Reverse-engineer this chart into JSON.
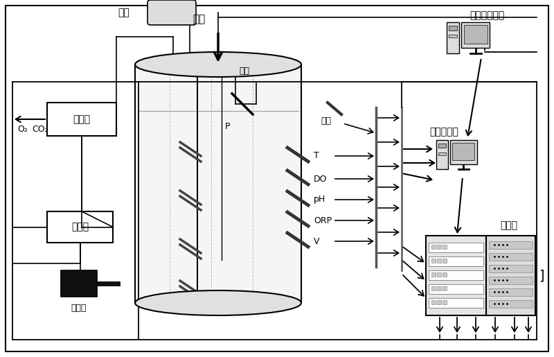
{
  "bg_color": "#ffffff",
  "line_color": "#000000",
  "labels": {
    "buLiao": "补料",
    "guangYuan": "光源",
    "shenDu": "深度",
    "liuLiang": "流量",
    "zhiPuYi": "质谱仪",
    "O2": "O₂",
    "CO2": "CO₂",
    "jiSuanJi1": "计算机",
    "xianWeiYi": "显微仪",
    "T": "T",
    "DO": "DO",
    "pH": "pH",
    "ORP": "ORP",
    "V": "V",
    "P": "P",
    "jiDiShuJu": "就地数据处理",
    "jiSuanJiKongZhi": "计算机控制",
    "juYuWang": "局域网"
  }
}
